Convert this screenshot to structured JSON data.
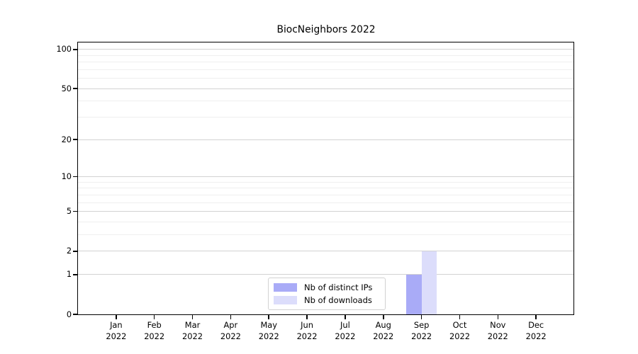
{
  "title": "BiocNeighbors 2022",
  "colors": {
    "distinct_ips_bar": "#a9abf7",
    "downloads_bar": "#dcddfb",
    "grid_major": "#d2d2d2",
    "grid_minor": "#efefef",
    "axis": "#000000",
    "legend_border": "#d2d2d2"
  },
  "legend": {
    "items": [
      {
        "label": "Nb of distinct IPs",
        "color": "#a9abf7"
      },
      {
        "label": "Nb of downloads",
        "color": "#dcddfb"
      }
    ]
  },
  "chart_data": {
    "type": "bar",
    "title": "BiocNeighbors 2022",
    "x_categories": [
      {
        "month": "Jan",
        "year": "2022"
      },
      {
        "month": "Feb",
        "year": "2022"
      },
      {
        "month": "Mar",
        "year": "2022"
      },
      {
        "month": "Apr",
        "year": "2022"
      },
      {
        "month": "May",
        "year": "2022"
      },
      {
        "month": "Jun",
        "year": "2022"
      },
      {
        "month": "Jul",
        "year": "2022"
      },
      {
        "month": "Aug",
        "year": "2022"
      },
      {
        "month": "Sep",
        "year": "2022"
      },
      {
        "month": "Oct",
        "year": "2022"
      },
      {
        "month": "Nov",
        "year": "2022"
      },
      {
        "month": "Dec",
        "year": "2022"
      }
    ],
    "series": [
      {
        "name": "Nb of distinct IPs",
        "color": "#a9abf7",
        "values": [
          0,
          0,
          0,
          0,
          0,
          0,
          0,
          0,
          1,
          0,
          0,
          0
        ]
      },
      {
        "name": "Nb of downloads",
        "color": "#dcddfb",
        "values": [
          0,
          0,
          0,
          0,
          0,
          0,
          0,
          0,
          2,
          0,
          0,
          0
        ]
      }
    ],
    "yscale": "log1p",
    "ylim": [
      0,
      113
    ],
    "y_ticks": [
      0,
      1,
      2,
      5,
      10,
      20,
      50,
      100
    ],
    "y_major_gridlines": [
      1,
      2,
      5,
      10,
      20,
      50,
      100
    ],
    "y_minor_gridlines": [
      3,
      4,
      6,
      7,
      8,
      9,
      30,
      40,
      60,
      70,
      80,
      90
    ],
    "grid": true,
    "xlabel": "",
    "ylabel": "",
    "legend_position": "lower center"
  }
}
